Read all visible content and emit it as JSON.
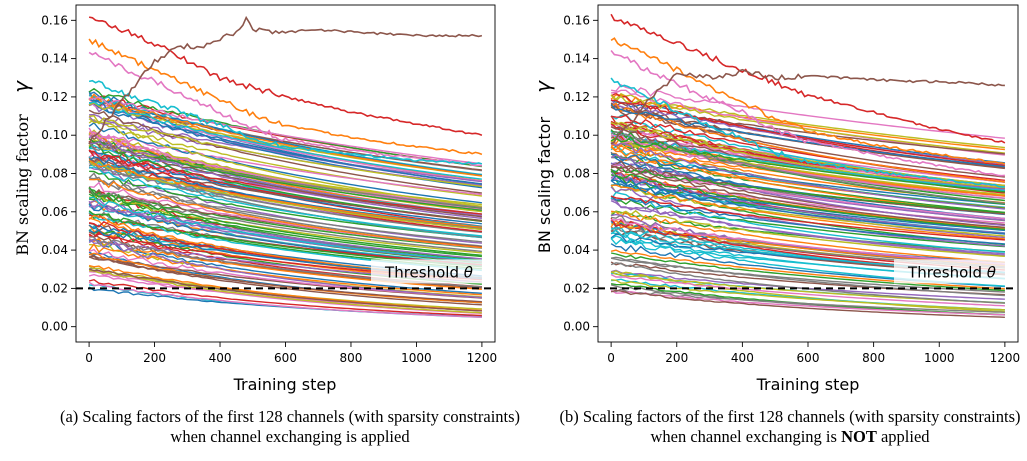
{
  "figure": {
    "captions": [
      {
        "tag": "(a)",
        "text": "Scaling factors of the first 128 channels (with sparsity constraints) when channel exchanging is applied",
        "emphasis": ""
      },
      {
        "tag": "(b)",
        "text_before": "Scaling factors of the first 128 channels (with sparsity constraints) when channel exchanging is",
        "emphasis": "NOT",
        "text_after": "applied"
      }
    ]
  },
  "chart_data": [
    {
      "type": "line",
      "panel": "a",
      "xlabel": "Training step",
      "ylabel": "BN scaling factor",
      "ylabel_symbol": "γ",
      "xlim": [
        -40,
        1240
      ],
      "ylim": [
        -0.008,
        0.168
      ],
      "xticks": [
        0,
        200,
        400,
        600,
        800,
        1000,
        1200
      ],
      "yticks": [
        "0.00",
        "0.02",
        "0.04",
        "0.06",
        "0.08",
        "0.10",
        "0.12",
        "0.14",
        "0.16"
      ],
      "threshold": {
        "label": "Threshold",
        "symbol": "θ",
        "value": 0.02
      },
      "series_count": 128,
      "highlighted_series": [
        {
          "x": [
            0,
            100,
            200,
            250,
            300,
            400,
            450,
            500,
            600,
            800,
            1000,
            1200
          ],
          "y": [
            0.162,
            0.155,
            0.148,
            0.144,
            0.139,
            0.13,
            0.127,
            0.125,
            0.12,
            0.112,
            0.106,
            0.1
          ],
          "color": "#d62728"
        },
        {
          "x": [
            0,
            100,
            200,
            300,
            400,
            450,
            500,
            600,
            800,
            1000,
            1200
          ],
          "y": [
            0.15,
            0.142,
            0.134,
            0.126,
            0.119,
            0.115,
            0.111,
            0.105,
            0.099,
            0.094,
            0.09
          ],
          "color": "#ff7f0e"
        },
        {
          "x": [
            0,
            100,
            200,
            300,
            400,
            450,
            500,
            600,
            800,
            1000,
            1200
          ],
          "y": [
            0.144,
            0.135,
            0.128,
            0.12,
            0.112,
            0.108,
            0.104,
            0.098,
            0.092,
            0.088,
            0.084
          ],
          "color": "#e377c2"
        },
        {
          "x": [
            0,
            100,
            200,
            300,
            400,
            450,
            500,
            600,
            800,
            1000,
            1200
          ],
          "y": [
            0.129,
            0.122,
            0.117,
            0.111,
            0.105,
            0.102,
            0.099,
            0.094,
            0.09,
            0.087,
            0.085
          ],
          "color": "#17becf"
        },
        {
          "x": [
            0,
            50,
            100,
            150,
            200,
            250,
            300,
            350,
            400,
            450,
            480,
            500,
            600,
            700,
            800,
            900,
            1000,
            1100,
            1200
          ],
          "y": [
            0.096,
            0.107,
            0.118,
            0.128,
            0.138,
            0.144,
            0.147,
            0.146,
            0.15,
            0.154,
            0.161,
            0.155,
            0.154,
            0.155,
            0.154,
            0.153,
            0.152,
            0.152,
            0.152
          ],
          "color": "#8c564b"
        }
      ]
    },
    {
      "type": "line",
      "panel": "b",
      "xlabel": "Training step",
      "ylabel": "BN scaling factor",
      "ylabel_symbol": "γ",
      "xlim": [
        -40,
        1240
      ],
      "ylim": [
        -0.008,
        0.168
      ],
      "xticks": [
        0,
        200,
        400,
        600,
        800,
        1000,
        1200
      ],
      "yticks": [
        "0.00",
        "0.02",
        "0.04",
        "0.06",
        "0.08",
        "0.10",
        "0.12",
        "0.14",
        "0.16"
      ],
      "threshold": {
        "label": "Threshold",
        "symbol": "θ",
        "value": 0.02
      },
      "series_count": 128,
      "highlighted_series": [
        {
          "x": [
            0,
            100,
            200,
            300,
            400,
            450,
            500,
            600,
            800,
            1000,
            1200
          ],
          "y": [
            0.162,
            0.156,
            0.148,
            0.141,
            0.134,
            0.131,
            0.127,
            0.121,
            0.112,
            0.103,
            0.096
          ],
          "color": "#d62728"
        },
        {
          "x": [
            0,
            100,
            200,
            300,
            400,
            450,
            500,
            600,
            800,
            1000,
            1200
          ],
          "y": [
            0.15,
            0.143,
            0.134,
            0.125,
            0.117,
            0.113,
            0.109,
            0.102,
            0.095,
            0.09,
            0.085
          ],
          "color": "#ff7f0e"
        },
        {
          "x": [
            0,
            100,
            200,
            300,
            400,
            450,
            500,
            600,
            800,
            1000,
            1200
          ],
          "y": [
            0.144,
            0.135,
            0.127,
            0.119,
            0.112,
            0.107,
            0.103,
            0.097,
            0.09,
            0.084,
            0.079
          ],
          "color": "#e377c2"
        },
        {
          "x": [
            0,
            100,
            200,
            300,
            400,
            450,
            500,
            600,
            800,
            1000,
            1200
          ],
          "y": [
            0.129,
            0.121,
            0.113,
            0.105,
            0.098,
            0.094,
            0.091,
            0.086,
            0.081,
            0.077,
            0.073
          ],
          "color": "#17becf"
        },
        {
          "x": [
            0,
            50,
            100,
            150,
            200,
            250,
            300,
            350,
            400,
            450,
            500,
            600,
            700,
            800,
            900,
            1000,
            1100,
            1200
          ],
          "y": [
            0.096,
            0.105,
            0.115,
            0.124,
            0.132,
            0.131,
            0.13,
            0.131,
            0.133,
            0.132,
            0.13,
            0.131,
            0.13,
            0.129,
            0.128,
            0.128,
            0.127,
            0.126
          ],
          "color": "#8c564b"
        }
      ]
    }
  ]
}
